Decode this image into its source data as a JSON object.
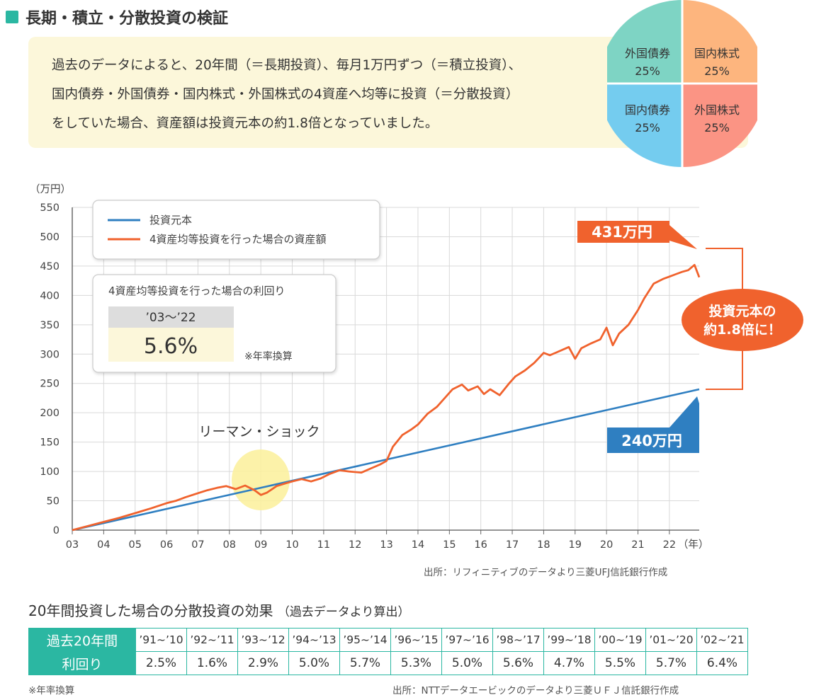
{
  "header": {
    "title": "長期・積立・分散投資の検証"
  },
  "intro": {
    "lines": [
      "過去のデータによると、20年間（＝長期投資）、毎月1万円ずつ（＝積立投資）、",
      "国内債券・外国債券・国内株式・外国株式の4資産へ均等に投資（＝分散投資）",
      "をしていた場合、資産額は投資元本の約1.8倍となっていました。"
    ]
  },
  "pie": {
    "slices": [
      {
        "label": "外国債券",
        "value": "25%",
        "color": "#7ED4C4"
      },
      {
        "label": "国内株式",
        "value": "25%",
        "color": "#FDB57E"
      },
      {
        "label": "国内債券",
        "value": "25%",
        "color": "#74CCEF"
      },
      {
        "label": "外国株式",
        "value": "25%",
        "color": "#FB9484"
      }
    ]
  },
  "chart_data": {
    "type": "line",
    "yunit": "（万円）",
    "ylim": [
      0,
      550
    ],
    "yticks": [
      0,
      50,
      100,
      150,
      200,
      250,
      300,
      350,
      400,
      450,
      500,
      550
    ],
    "xticks": [
      "03",
      "04",
      "05",
      "06",
      "07",
      "08",
      "09",
      "10",
      "11",
      "12",
      "13",
      "14",
      "15",
      "16",
      "17",
      "18",
      "19",
      "20",
      "21",
      "22"
    ],
    "xunit": "（年）",
    "xlim": [
      2003.0,
      2022.95
    ],
    "grid": true,
    "series": [
      {
        "name": "投資元本",
        "color": "#2F7FC1",
        "x": [
          2003.0,
          2022.95
        ],
        "y": [
          0,
          240
        ]
      },
      {
        "name": "4資産均等投資を行った場合の資産額",
        "color": "#F0622D",
        "x": [
          2003.0,
          2003.5,
          2004.0,
          2004.5,
          2005.0,
          2005.5,
          2006.0,
          2006.3,
          2006.6,
          2007.0,
          2007.3,
          2007.6,
          2007.9,
          2008.2,
          2008.5,
          2008.8,
          2009.0,
          2009.2,
          2009.5,
          2009.8,
          2010.0,
          2010.3,
          2010.6,
          2010.9,
          2011.2,
          2011.5,
          2011.8,
          2012.2,
          2012.5,
          2012.8,
          2013.0,
          2013.2,
          2013.5,
          2013.8,
          2014.0,
          2014.3,
          2014.6,
          2014.9,
          2015.1,
          2015.4,
          2015.6,
          2015.9,
          2016.1,
          2016.3,
          2016.6,
          2016.9,
          2017.1,
          2017.4,
          2017.7,
          2018.0,
          2018.2,
          2018.5,
          2018.8,
          2019.0,
          2019.2,
          2019.5,
          2019.8,
          2020.0,
          2020.2,
          2020.4,
          2020.7,
          2021.0,
          2021.2,
          2021.5,
          2021.8,
          2022.0,
          2022.2,
          2022.4,
          2022.6,
          2022.8,
          2022.95
        ],
        "y": [
          0,
          7,
          14,
          21,
          29,
          37,
          46,
          50,
          56,
          63,
          68,
          72,
          75,
          70,
          76,
          68,
          60,
          64,
          75,
          80,
          83,
          87,
          83,
          88,
          96,
          102,
          100,
          98,
          105,
          112,
          118,
          142,
          162,
          172,
          180,
          198,
          210,
          228,
          240,
          248,
          238,
          245,
          232,
          240,
          230,
          250,
          262,
          272,
          285,
          302,
          298,
          305,
          312,
          292,
          310,
          318,
          325,
          345,
          315,
          335,
          350,
          375,
          395,
          420,
          428,
          432,
          436,
          440,
          443,
          452,
          431
        ]
      }
    ],
    "annotations": {
      "end_asset": "431万円",
      "end_principal": "240万円",
      "multiplier_line1": "投資元本の",
      "multiplier_line2": "約1.8倍に！",
      "lehman": "リーマン・ショック",
      "return_title": "4資産均等投資を行った場合の利回り",
      "return_period": "’03～’22",
      "return_value": "5.6%",
      "return_note": "※年率換算"
    }
  },
  "sources": {
    "chart": "出所：リフィニティブのデータより三菱UFJ信託銀行作成",
    "table": "出所：NTTデータエービックのデータより三菱ＵＦＪ信託銀行作成"
  },
  "table": {
    "title": "20年間投資した場合の分散投資の効果",
    "subtitle": "（過去データより算出）",
    "row1_head": "過去20年間",
    "row2_head": "利回り",
    "periods": [
      "’91~’10",
      "’92~’11",
      "’93~’12",
      "’94~’13",
      "’95~’14",
      "’96~’15",
      "’97~’16",
      "’98~’17",
      "’99~’18",
      "’00~’19",
      "’01~’20",
      "’02~’21"
    ],
    "returns": [
      "2.5%",
      "1.6%",
      "2.9%",
      "5.0%",
      "5.7%",
      "5.3%",
      "5.0%",
      "5.6%",
      "4.7%",
      "5.5%",
      "5.7%",
      "6.4%"
    ],
    "footnote": "※年率換算"
  }
}
